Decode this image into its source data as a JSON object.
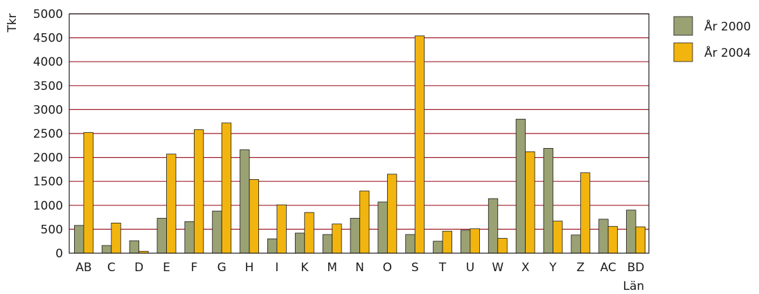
{
  "chart_data": {
    "type": "bar",
    "title": "",
    "xlabel": "Län",
    "ylabel": "Tkr",
    "ylim": [
      0,
      5000
    ],
    "yticks": [
      0,
      500,
      1000,
      1500,
      2000,
      2500,
      3000,
      3500,
      4000,
      4500,
      5000
    ],
    "grid": true,
    "legend_position": "top-right",
    "categories": [
      "AB",
      "C",
      "D",
      "E",
      "F",
      "G",
      "H",
      "I",
      "K",
      "M",
      "N",
      "O",
      "S",
      "T",
      "U",
      "W",
      "X",
      "Y",
      "Z",
      "AC",
      "BD"
    ],
    "series": [
      {
        "name": "År 2000",
        "color": "#9aa173",
        "values": [
          580,
          160,
          260,
          730,
          660,
          880,
          2160,
          300,
          420,
          390,
          730,
          1070,
          390,
          250,
          480,
          1140,
          2800,
          2190,
          380,
          710,
          900
        ]
      },
      {
        "name": "År 2004",
        "color": "#f2b50f",
        "values": [
          2520,
          630,
          40,
          2070,
          2580,
          2720,
          1540,
          1010,
          850,
          610,
          1300,
          1650,
          4540,
          460,
          510,
          310,
          2120,
          670,
          1680,
          560,
          550
        ]
      }
    ],
    "gridline_color": "#a01e2b"
  }
}
